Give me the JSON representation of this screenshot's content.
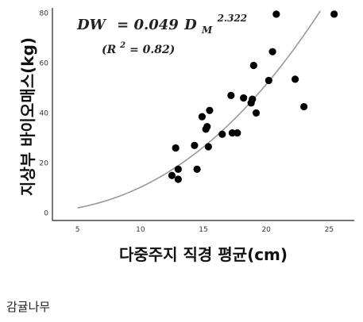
{
  "chart_data": {
    "type": "scatter",
    "xlabel": "다중주지 직경 평균(cm)",
    "ylabel": "지상부 바이오매스(kg)",
    "xlim": [
      3,
      27
    ],
    "ylim": [
      -3,
      82
    ],
    "xticks": [
      5,
      10,
      15,
      20,
      25
    ],
    "yticks": [
      0,
      20,
      40,
      60,
      80
    ],
    "grid": false,
    "equation": {
      "lhs": "DW",
      "eq": "= 0.049",
      "var": "D",
      "sub": "M",
      "exp": "2.322",
      "r2_open": "(R",
      "r2_sup": "2",
      "r2_rest": "= 0.82)"
    },
    "fit": {
      "a": 0.049,
      "b": 2.322,
      "x_start": 5,
      "x_end": 24.3,
      "color": "#999999"
    },
    "point_color": "#000000",
    "points": [
      [
        12.5,
        15
      ],
      [
        12.8,
        26
      ],
      [
        13.0,
        13.5
      ],
      [
        13.0,
        17.5
      ],
      [
        14.3,
        27
      ],
      [
        14.5,
        17.5
      ],
      [
        14.9,
        38.5
      ],
      [
        15.2,
        33.5
      ],
      [
        15.3,
        34.5
      ],
      [
        15.4,
        26.5
      ],
      [
        15.5,
        41
      ],
      [
        16.5,
        31.5
      ],
      [
        17.2,
        47
      ],
      [
        17.3,
        32
      ],
      [
        17.7,
        32
      ],
      [
        18.2,
        46
      ],
      [
        18.8,
        44
      ],
      [
        18.9,
        45.5
      ],
      [
        19.0,
        59
      ],
      [
        19.2,
        40
      ],
      [
        20.2,
        53
      ],
      [
        20.5,
        64.5
      ],
      [
        20.8,
        79.5
      ],
      [
        22.3,
        53.5
      ],
      [
        23.0,
        42.5
      ],
      [
        25.4,
        79.5
      ]
    ]
  },
  "caption": "감귤나무"
}
